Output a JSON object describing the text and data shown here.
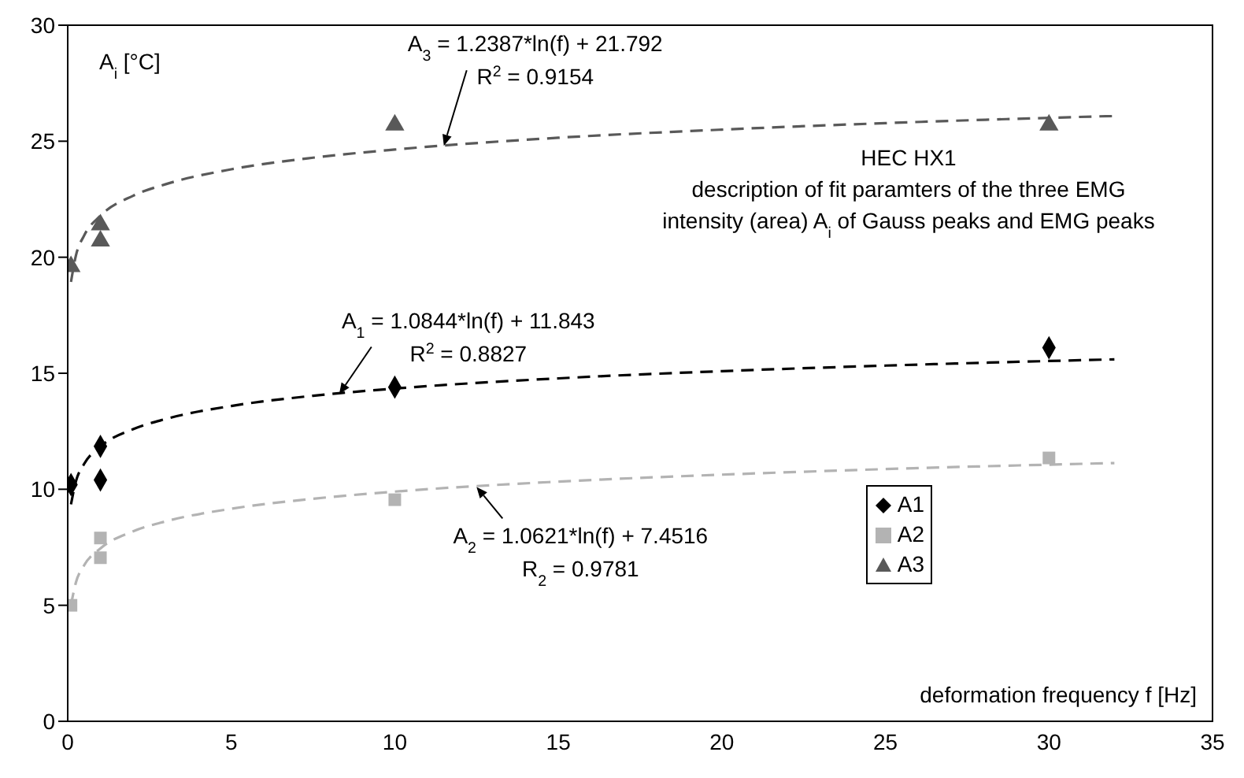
{
  "chart_data": {
    "type": "scatter",
    "ylabel": "A$_{i}$ [°C]",
    "xlabel": "deformation frequency f [Hz]",
    "xlim": [
      0,
      35
    ],
    "xticks": [
      0,
      5,
      10,
      15,
      20,
      25,
      30,
      35
    ],
    "ylim": [
      0,
      30
    ],
    "yticks": [
      0,
      5,
      10,
      15,
      20,
      25,
      30
    ],
    "grid": false,
    "legend": "right",
    "series": [
      {
        "name": "A1",
        "color": "#000000",
        "marker": "diamond",
        "x": [
          0.1,
          1,
          1,
          10,
          30
        ],
        "values": [
          10.2,
          11.85,
          10.4,
          14.4,
          16.1
        ]
      },
      {
        "name": "A2",
        "color": "#b3b3b3",
        "marker": "square",
        "x": [
          0.1,
          1,
          1,
          10,
          30
        ],
        "values": [
          5.0,
          7.9,
          7.05,
          9.55,
          11.35
        ]
      },
      {
        "name": "A3",
        "color": "#595959",
        "marker": "triangle",
        "x": [
          0.1,
          1,
          1,
          10,
          30
        ],
        "values": [
          19.6,
          21.4,
          20.7,
          25.7,
          25.7
        ]
      },
      {
        "type": "line",
        "color": "#000000",
        "line_style": "dashed",
        "marker": "none",
        "x": [
          0.1,
          0.25,
          0.5,
          1,
          2,
          3,
          5,
          7.5,
          10,
          15,
          20,
          25,
          32
        ],
        "values": [
          9.35,
          10.34,
          11.09,
          11.84,
          12.59,
          13.03,
          13.59,
          14.03,
          14.34,
          14.78,
          15.09,
          15.33,
          15.6
        ]
      },
      {
        "type": "line",
        "color": "#b3b3b3",
        "line_style": "dashed",
        "marker": "none",
        "x": [
          0.1,
          0.25,
          0.5,
          1,
          2,
          3,
          5,
          7.5,
          10,
          15,
          20,
          25,
          32
        ],
        "values": [
          5.01,
          5.98,
          6.72,
          7.45,
          8.19,
          8.62,
          9.16,
          9.59,
          9.9,
          10.33,
          10.63,
          10.87,
          11.13
        ]
      },
      {
        "type": "line",
        "color": "#595959",
        "line_style": "dashed",
        "marker": "none",
        "x": [
          0.1,
          0.25,
          0.5,
          1,
          2,
          3,
          5,
          7.5,
          10,
          15,
          20,
          25,
          32
        ],
        "values": [
          18.94,
          20.07,
          20.93,
          21.79,
          22.65,
          23.15,
          23.79,
          24.29,
          24.64,
          25.15,
          25.5,
          25.78,
          26.09
        ]
      }
    ],
    "annotations": [
      {
        "text": "A$_{3}$ = 1.2387*ln(f) + 21.792\nR$^{2}$ = 0.9154",
        "x": 11.5,
        "y": 24.8
      },
      {
        "text": "A$_{1}$ = 1.0844*ln(f) + 11.843\nR$^{2}$ = 0.8827",
        "x": 8.3,
        "y": 14.1
      },
      {
        "text": "A$_{2}$ = 1.0621*ln(f) + 7.4516\nR$_{2}$ = 0.9781",
        "x": 12.5,
        "y": 10.1
      },
      "HEC HX1",
      "description of fit paramters of the three EMG",
      "intensity (area) A$_{i}$ of Gauss peaks and EMG peaks"
    ]
  }
}
